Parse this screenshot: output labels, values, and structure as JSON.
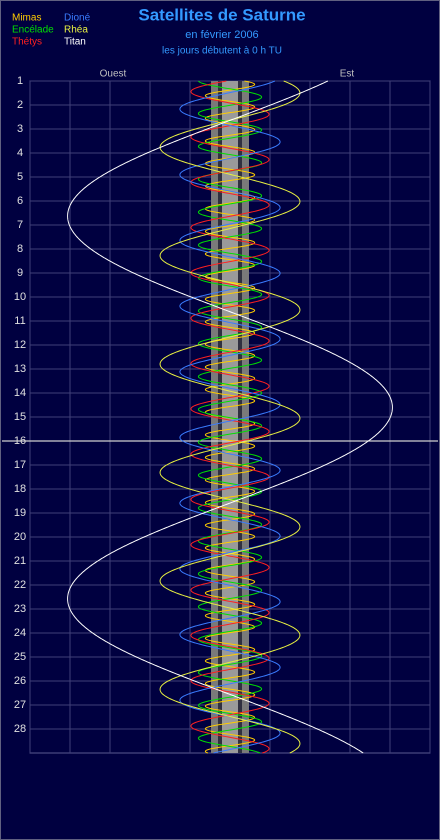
{
  "chart_data": {
    "type": "orbit",
    "title": "Satellites de Saturne",
    "subtitle": "en février 2006",
    "note": "les jours débutent à 0 h TU",
    "west_label": "Ouest",
    "east_label": "Est",
    "ylim": [
      1,
      29
    ],
    "yticks": [
      1,
      2,
      3,
      4,
      5,
      6,
      7,
      8,
      9,
      10,
      11,
      12,
      13,
      14,
      15,
      16,
      17,
      18,
      19,
      20,
      21,
      22,
      23,
      24,
      25,
      26,
      27,
      28
    ],
    "xlim": [
      -25,
      25
    ],
    "xticks": [
      -25,
      -20,
      -15,
      -10,
      -5,
      0,
      5,
      10,
      15,
      20,
      25
    ],
    "grid": true,
    "highlight_day": 16,
    "series": [
      {
        "name": "Mimas",
        "color": "#ffcc00",
        "amplitude": 3.08,
        "period": 0.942,
        "epoch": 0.2
      },
      {
        "name": "Encélade",
        "color": "#00e000",
        "amplitude": 3.95,
        "period": 1.37,
        "epoch": 0.3
      },
      {
        "name": "Thétys",
        "color": "#ff2020",
        "amplitude": 4.88,
        "period": 1.888,
        "epoch": 0.5
      },
      {
        "name": "Dioné",
        "color": "#3a7cff",
        "amplitude": 6.26,
        "period": 2.737,
        "epoch": 0.8
      },
      {
        "name": "Rhéa",
        "color": "#e8f040",
        "amplitude": 8.74,
        "period": 4.518,
        "epoch": 1.5
      },
      {
        "name": "Titan",
        "color": "#ffffff",
        "amplitude": 20.3,
        "period": 15.945,
        "epoch": 14.6
      }
    ]
  }
}
